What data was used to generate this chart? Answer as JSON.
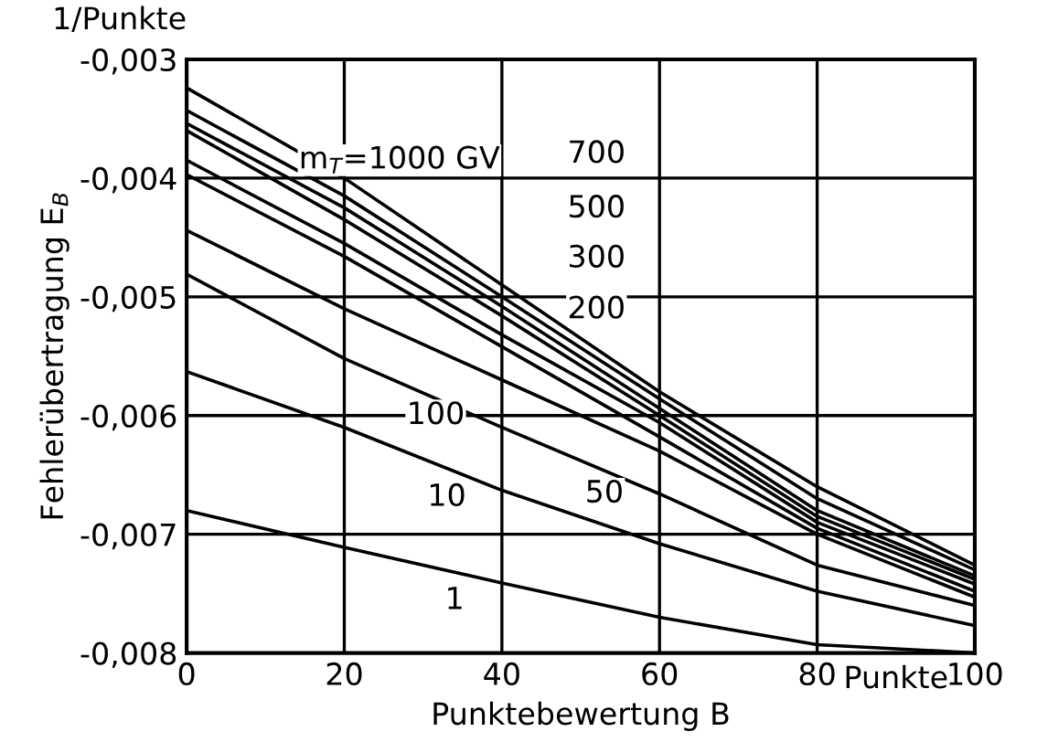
{
  "chart_data": {
    "type": "line",
    "xlabel": "Punktebewertung B",
    "ylabel": "Fehlerübertragung E$_{B}$",
    "x": [
      0,
      20,
      40,
      60,
      80,
      100
    ],
    "series": [
      {
        "color": "#000000",
        "values": [
          -0.00324,
          -0.004,
          -0.0049,
          -0.0058,
          -0.0066,
          -0.00726
        ]
      },
      {
        "color": "#000000",
        "values": [
          -0.00343,
          -0.00415,
          -0.005,
          -0.00586,
          -0.0067,
          -0.0073
        ]
      },
      {
        "color": "#000000",
        "values": [
          -0.00354,
          -0.00425,
          -0.00508,
          -0.00594,
          -0.0068,
          -0.00735
        ]
      },
      {
        "color": "#000000",
        "values": [
          -0.0036,
          -0.00435,
          -0.00516,
          -0.006,
          -0.00685,
          -0.00738
        ]
      },
      {
        "color": "#000000",
        "values": [
          -0.00385,
          -0.00455,
          -0.00532,
          -0.00606,
          -0.0069,
          -0.00742
        ]
      },
      {
        "color": "#000000",
        "values": [
          -0.00397,
          -0.00466,
          -0.00542,
          -0.00618,
          -0.00695,
          -0.00748
        ]
      },
      {
        "color": "#000000",
        "values": [
          -0.00444,
          -0.0051,
          -0.0057,
          -0.0063,
          -0.007,
          -0.00753
        ]
      },
      {
        "color": "#000000",
        "values": [
          -0.00481,
          -0.00552,
          -0.0061,
          -0.00666,
          -0.00726,
          -0.0076
        ]
      },
      {
        "color": "#000000",
        "values": [
          -0.00563,
          -0.0061,
          -0.00663,
          -0.00708,
          -0.00748,
          -0.00777
        ]
      },
      {
        "color": "#000000",
        "values": [
          -0.0068,
          -0.00711,
          -0.00741,
          -0.0077,
          -0.00793,
          -0.008
        ]
      }
    ],
    "xlim": [
      0,
      100
    ],
    "xticks": [
      0,
      20,
      40,
      60,
      80,
      100
    ],
    "ylim": [
      -0.008,
      -0.003
    ],
    "yticks": [
      {
        "value": -0.008,
        "label": "-0,008"
      },
      {
        "value": -0.007,
        "label": "-0,007"
      },
      {
        "value": -0.006,
        "label": "-0,006"
      },
      {
        "value": -0.005,
        "label": "-0,005"
      },
      {
        "value": -0.004,
        "label": "-0,004"
      },
      {
        "value": -0.003,
        "label": "-0,003"
      }
    ],
    "grid": true,
    "legend": false,
    "marker": "none",
    "line_style": "solid",
    "annotations": [
      "Punkte",
      "m$_{T}$=1000 GV",
      "1/Punkte",
      {
        "text": "700",
        "x": 52,
        "y": -0.0038
      },
      {
        "text": "500",
        "x": 52,
        "y": -0.00426
      },
      {
        "text": "300",
        "x": 52,
        "y": -0.00468
      },
      {
        "text": "200",
        "x": 52,
        "y": -0.00511
      },
      {
        "text": "100",
        "x": 31.6,
        "y": -0.006
      },
      {
        "text": "10",
        "x": 33,
        "y": -0.00669
      },
      {
        "text": "50",
        "x": 53,
        "y": -0.00666
      },
      {
        "text": "1",
        "x": 34,
        "y": -0.00756
      }
    ]
  }
}
